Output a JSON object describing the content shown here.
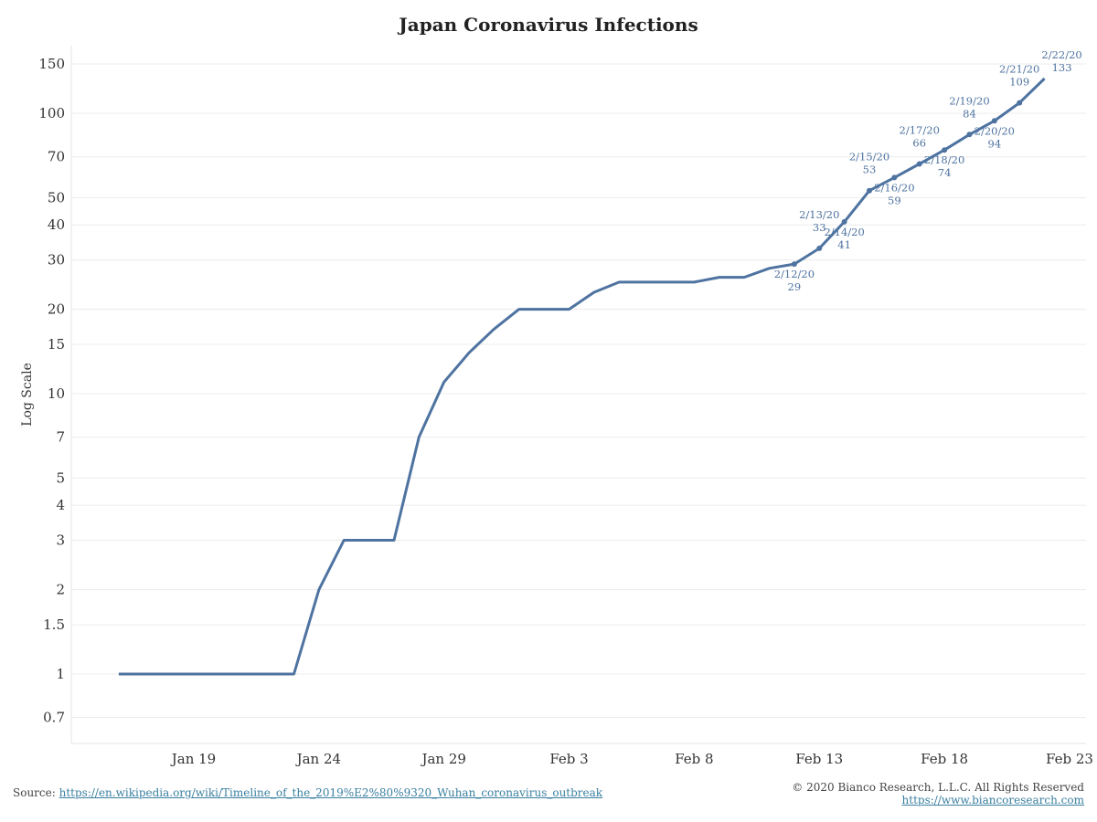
{
  "chart_data": {
    "type": "line",
    "title": "Japan Coronavirus Infections",
    "ylabel": "Log Scale",
    "xlabel": "",
    "y_scale": "log",
    "ylim": [
      0.6,
      170
    ],
    "xlim": [
      "2020-01-14",
      "2020-02-23"
    ],
    "grid": "horizontal",
    "line_color": "#4e73a0",
    "y_ticks": [
      0.7,
      1,
      1.5,
      2,
      3,
      4,
      5,
      7,
      10,
      15,
      20,
      30,
      40,
      50,
      70,
      100,
      150
    ],
    "y_tick_labels": [
      "0.7",
      "1",
      "1.5",
      "2",
      "3",
      "4",
      "5",
      "7",
      "10",
      "15",
      "20",
      "30",
      "40",
      "50",
      "70",
      "100",
      "150"
    ],
    "x_ticks": [
      "2020-01-19",
      "2020-01-24",
      "2020-01-29",
      "2020-02-03",
      "2020-02-08",
      "2020-02-13",
      "2020-02-18",
      "2020-02-23"
    ],
    "x_tick_labels": [
      "Jan 19",
      "Jan 24",
      "Jan 29",
      "Feb 3",
      "Feb 8",
      "Feb 13",
      "Feb 18",
      "Feb 23"
    ],
    "series": [
      {
        "x": [
          "2020-01-16",
          "2020-01-17",
          "2020-01-18",
          "2020-01-19",
          "2020-01-20",
          "2020-01-21",
          "2020-01-22",
          "2020-01-23",
          "2020-01-24",
          "2020-01-25",
          "2020-01-26",
          "2020-01-27",
          "2020-01-28",
          "2020-01-29",
          "2020-01-30",
          "2020-01-31",
          "2020-02-01",
          "2020-02-02",
          "2020-02-03",
          "2020-02-04",
          "2020-02-05",
          "2020-02-06",
          "2020-02-07",
          "2020-02-08",
          "2020-02-09",
          "2020-02-10",
          "2020-02-11",
          "2020-02-12",
          "2020-02-13",
          "2020-02-14",
          "2020-02-15",
          "2020-02-16",
          "2020-02-17",
          "2020-02-18",
          "2020-02-19",
          "2020-02-20",
          "2020-02-21",
          "2020-02-22"
        ],
        "values": [
          1,
          1,
          1,
          1,
          1,
          1,
          1,
          1,
          2,
          3,
          3,
          3,
          7,
          11,
          14,
          17,
          20,
          20,
          20,
          23,
          25,
          25,
          25,
          25,
          26,
          26,
          28,
          29,
          33,
          41,
          53,
          59,
          66,
          74,
          84,
          94,
          109,
          133
        ]
      }
    ],
    "annotations": [
      {
        "date": "2020-02-12",
        "text": "2/12/20",
        "value": "29",
        "side": "below"
      },
      {
        "date": "2020-02-13",
        "text": "2/13/20",
        "value": "33",
        "side": "above"
      },
      {
        "date": "2020-02-14",
        "text": "2/14/20",
        "value": "41",
        "side": "below"
      },
      {
        "date": "2020-02-15",
        "text": "2/15/20",
        "value": "53",
        "side": "above"
      },
      {
        "date": "2020-02-16",
        "text": "2/16/20",
        "value": "59",
        "side": "below"
      },
      {
        "date": "2020-02-17",
        "text": "2/17/20",
        "value": "66",
        "side": "above"
      },
      {
        "date": "2020-02-18",
        "text": "2/18/20",
        "value": "74",
        "side": "below"
      },
      {
        "date": "2020-02-19",
        "text": "2/19/20",
        "value": "84",
        "side": "above"
      },
      {
        "date": "2020-02-20",
        "text": "2/20/20",
        "value": "94",
        "side": "below"
      },
      {
        "date": "2020-02-21",
        "text": "2/21/20",
        "value": "109",
        "side": "above"
      },
      {
        "date": "2020-02-22",
        "text": "2/22/20",
        "value": "133",
        "side": "above"
      }
    ]
  },
  "footer": {
    "source_label": "Source:",
    "source_link": "https://en.wikipedia.org/wiki/Timeline_of_the_2019%E2%80%9320_Wuhan_coronavirus_outbreak",
    "copyright": "© 2020 Bianco Research, L.L.C. All Rights Reserved",
    "website": "https://www.biancoresearch.com"
  }
}
